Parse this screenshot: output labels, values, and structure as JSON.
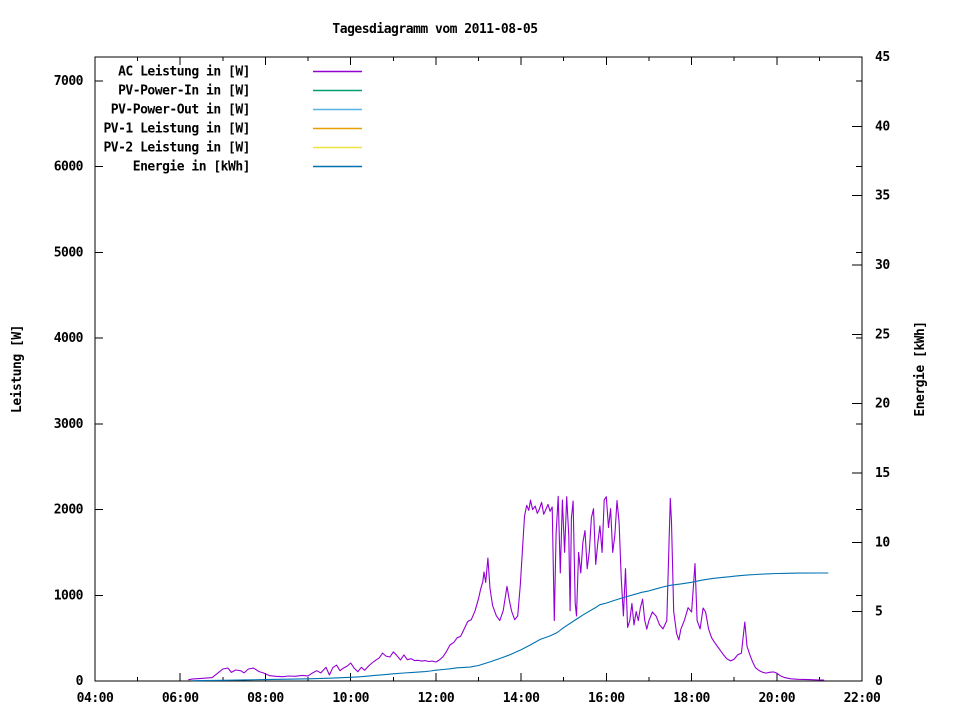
{
  "chart_data": {
    "type": "line",
    "title": "Tagesdiagramm vom 2011-08-05",
    "grid": false,
    "legend_position": "top-left-inside",
    "x": {
      "range_hours": [
        4,
        22
      ],
      "major_ticks": [
        {
          "hour": 4,
          "label": "04:00"
        },
        {
          "hour": 6,
          "label": "06:00"
        },
        {
          "hour": 8,
          "label": "08:00"
        },
        {
          "hour": 10,
          "label": "10:00"
        },
        {
          "hour": 12,
          "label": "12:00"
        },
        {
          "hour": 14,
          "label": "14:00"
        },
        {
          "hour": 16,
          "label": "16:00"
        },
        {
          "hour": 18,
          "label": "18:00"
        },
        {
          "hour": 20,
          "label": "20:00"
        },
        {
          "hour": 22,
          "label": "22:00"
        }
      ],
      "minor_tick_hours": [
        5,
        7,
        9,
        11,
        13,
        15,
        17,
        19,
        21
      ]
    },
    "y_left": {
      "label": "Leistung [W]",
      "range": [
        0,
        7280
      ],
      "tick_values": [
        0,
        1000,
        2000,
        3000,
        4000,
        5000,
        6000,
        7000
      ],
      "tick_labels": [
        "0",
        "1000",
        "2000",
        "3000",
        "4000",
        "5000",
        "6000",
        "7000"
      ]
    },
    "y_right": {
      "label": "Energie [kWh]",
      "range": [
        0,
        45
      ],
      "tick_values": [
        0,
        5,
        10,
        15,
        20,
        25,
        30,
        35,
        40,
        45
      ],
      "tick_labels": [
        "0",
        "5",
        "10",
        "15",
        "20",
        "25",
        "30",
        "35",
        "40",
        "45"
      ]
    },
    "series": [
      {
        "name": "AC Leistung in [W]",
        "color": "#9400d3",
        "axis": "left",
        "points": [
          [
            6.2,
            15
          ],
          [
            6.3,
            25
          ],
          [
            6.5,
            30
          ],
          [
            6.75,
            40
          ],
          [
            6.9,
            100
          ],
          [
            7.0,
            140
          ],
          [
            7.12,
            152
          ],
          [
            7.2,
            100
          ],
          [
            7.3,
            128
          ],
          [
            7.42,
            120
          ],
          [
            7.5,
            95
          ],
          [
            7.6,
            140
          ],
          [
            7.72,
            150
          ],
          [
            7.85,
            110
          ],
          [
            7.95,
            95
          ],
          [
            8.1,
            62
          ],
          [
            8.25,
            55
          ],
          [
            8.4,
            50
          ],
          [
            8.55,
            58
          ],
          [
            8.7,
            55
          ],
          [
            8.85,
            65
          ],
          [
            9.0,
            60
          ],
          [
            9.1,
            92
          ],
          [
            9.2,
            120
          ],
          [
            9.3,
            95
          ],
          [
            9.42,
            160
          ],
          [
            9.5,
            70
          ],
          [
            9.58,
            155
          ],
          [
            9.67,
            185
          ],
          [
            9.75,
            120
          ],
          [
            9.83,
            150
          ],
          [
            9.92,
            175
          ],
          [
            10.0,
            210
          ],
          [
            10.08,
            150
          ],
          [
            10.17,
            108
          ],
          [
            10.25,
            160
          ],
          [
            10.33,
            125
          ],
          [
            10.42,
            175
          ],
          [
            10.5,
            210
          ],
          [
            10.58,
            240
          ],
          [
            10.67,
            270
          ],
          [
            10.75,
            325
          ],
          [
            10.83,
            290
          ],
          [
            10.92,
            280
          ],
          [
            11.0,
            340
          ],
          [
            11.08,
            300
          ],
          [
            11.17,
            245
          ],
          [
            11.25,
            305
          ],
          [
            11.33,
            248
          ],
          [
            11.42,
            260
          ],
          [
            11.5,
            238
          ],
          [
            11.58,
            242
          ],
          [
            11.67,
            232
          ],
          [
            11.75,
            238
          ],
          [
            11.83,
            228
          ],
          [
            11.92,
            232
          ],
          [
            12.0,
            222
          ],
          [
            12.08,
            245
          ],
          [
            12.17,
            285
          ],
          [
            12.25,
            345
          ],
          [
            12.33,
            420
          ],
          [
            12.42,
            450
          ],
          [
            12.5,
            505
          ],
          [
            12.58,
            520
          ],
          [
            12.67,
            612
          ],
          [
            12.75,
            695
          ],
          [
            12.83,
            715
          ],
          [
            12.92,
            820
          ],
          [
            13.0,
            960
          ],
          [
            13.05,
            1070
          ],
          [
            13.1,
            1160
          ],
          [
            13.13,
            1272
          ],
          [
            13.17,
            1150
          ],
          [
            13.22,
            1435
          ],
          [
            13.27,
            1080
          ],
          [
            13.33,
            880
          ],
          [
            13.42,
            760
          ],
          [
            13.5,
            705
          ],
          [
            13.58,
            820
          ],
          [
            13.67,
            1105
          ],
          [
            13.72,
            950
          ],
          [
            13.78,
            810
          ],
          [
            13.85,
            715
          ],
          [
            13.92,
            760
          ],
          [
            13.98,
            1120
          ],
          [
            14.03,
            1520
          ],
          [
            14.08,
            1920
          ],
          [
            14.13,
            2050
          ],
          [
            14.18,
            1990
          ],
          [
            14.22,
            2110
          ],
          [
            14.27,
            2000
          ],
          [
            14.33,
            2040
          ],
          [
            14.38,
            1955
          ],
          [
            14.43,
            2005
          ],
          [
            14.48,
            2085
          ],
          [
            14.53,
            1945
          ],
          [
            14.58,
            2000
          ],
          [
            14.63,
            2060
          ],
          [
            14.68,
            1980
          ],
          [
            14.73,
            2030
          ],
          [
            14.78,
            705
          ],
          [
            14.82,
            1720
          ],
          [
            14.87,
            2155
          ],
          [
            14.92,
            1260
          ],
          [
            14.97,
            2110
          ],
          [
            15.02,
            1500
          ],
          [
            15.07,
            2150
          ],
          [
            15.12,
            1690
          ],
          [
            15.15,
            820
          ],
          [
            15.18,
            1900
          ],
          [
            15.22,
            2100
          ],
          [
            15.27,
            905
          ],
          [
            15.3,
            760
          ],
          [
            15.35,
            1500
          ],
          [
            15.4,
            1260
          ],
          [
            15.45,
            1620
          ],
          [
            15.5,
            1755
          ],
          [
            15.55,
            1310
          ],
          [
            15.6,
            1510
          ],
          [
            15.65,
            1905
          ],
          [
            15.7,
            2010
          ],
          [
            15.75,
            1360
          ],
          [
            15.8,
            1610
          ],
          [
            15.85,
            1810
          ],
          [
            15.9,
            1500
          ],
          [
            15.95,
            2110
          ],
          [
            16.0,
            2150
          ],
          [
            16.05,
            1790
          ],
          [
            16.1,
            2010
          ],
          [
            16.15,
            1500
          ],
          [
            16.2,
            1710
          ],
          [
            16.25,
            2105
          ],
          [
            16.3,
            1850
          ],
          [
            16.35,
            1210
          ],
          [
            16.4,
            760
          ],
          [
            16.45,
            1310
          ],
          [
            16.5,
            625
          ],
          [
            16.55,
            705
          ],
          [
            16.6,
            905
          ],
          [
            16.65,
            655
          ],
          [
            16.7,
            810
          ],
          [
            16.75,
            705
          ],
          [
            16.8,
            855
          ],
          [
            16.85,
            955
          ],
          [
            16.9,
            710
          ],
          [
            16.95,
            605
          ],
          [
            17.0,
            705
          ],
          [
            17.08,
            805
          ],
          [
            17.17,
            755
          ],
          [
            17.25,
            655
          ],
          [
            17.33,
            608
          ],
          [
            17.42,
            705
          ],
          [
            17.5,
            2130
          ],
          [
            17.53,
            1850
          ],
          [
            17.58,
            810
          ],
          [
            17.65,
            555
          ],
          [
            17.7,
            480
          ],
          [
            17.75,
            605
          ],
          [
            17.83,
            705
          ],
          [
            17.92,
            855
          ],
          [
            18.0,
            805
          ],
          [
            18.08,
            1370
          ],
          [
            18.13,
            705
          ],
          [
            18.2,
            608
          ],
          [
            18.27,
            850
          ],
          [
            18.33,
            805
          ],
          [
            18.4,
            605
          ],
          [
            18.47,
            505
          ],
          [
            18.53,
            458
          ],
          [
            18.6,
            408
          ],
          [
            18.67,
            360
          ],
          [
            18.75,
            305
          ],
          [
            18.83,
            258
          ],
          [
            18.92,
            235
          ],
          [
            19.0,
            255
          ],
          [
            19.08,
            305
          ],
          [
            19.17,
            325
          ],
          [
            19.25,
            688
          ],
          [
            19.3,
            405
          ],
          [
            19.37,
            305
          ],
          [
            19.43,
            225
          ],
          [
            19.5,
            155
          ],
          [
            19.58,
            122
          ],
          [
            19.67,
            102
          ],
          [
            19.75,
            92
          ],
          [
            19.83,
            102
          ],
          [
            19.92,
            106
          ],
          [
            20.0,
            92
          ],
          [
            20.08,
            62
          ],
          [
            20.17,
            42
          ],
          [
            20.33,
            26
          ],
          [
            20.5,
            20
          ],
          [
            20.75,
            16
          ],
          [
            21.0,
            12
          ],
          [
            21.1,
            10
          ]
        ]
      },
      {
        "name": "PV-Power-In in [W]",
        "color": "#009e73",
        "axis": "left",
        "points": []
      },
      {
        "name": "PV-Power-Out in [W]",
        "color": "#56b4e9",
        "axis": "left",
        "points": []
      },
      {
        "name": "PV-1 Leistung in [W]",
        "color": "#e69f00",
        "axis": "left",
        "points": []
      },
      {
        "name": "PV-2 Leistung in [W]",
        "color": "#f0e442",
        "axis": "left",
        "points": []
      },
      {
        "name": "Energie in [kWh]",
        "color": "#0072b2",
        "axis": "right",
        "points": [
          [
            6.3,
            0.02
          ],
          [
            7.0,
            0.05
          ],
          [
            7.5,
            0.08
          ],
          [
            8.0,
            0.1
          ],
          [
            8.5,
            0.13
          ],
          [
            9.0,
            0.16
          ],
          [
            9.5,
            0.2
          ],
          [
            10.0,
            0.27
          ],
          [
            10.25,
            0.31
          ],
          [
            10.5,
            0.38
          ],
          [
            10.75,
            0.45
          ],
          [
            11.0,
            0.52
          ],
          [
            11.25,
            0.58
          ],
          [
            11.5,
            0.63
          ],
          [
            11.75,
            0.68
          ],
          [
            11.87,
            0.72
          ],
          [
            12.0,
            0.78
          ],
          [
            12.17,
            0.83
          ],
          [
            12.33,
            0.88
          ],
          [
            12.5,
            0.95
          ],
          [
            12.8,
            1.0
          ],
          [
            13.0,
            1.12
          ],
          [
            13.27,
            1.38
          ],
          [
            13.5,
            1.62
          ],
          [
            13.73,
            1.88
          ],
          [
            14.0,
            2.25
          ],
          [
            14.22,
            2.6
          ],
          [
            14.45,
            3.0
          ],
          [
            14.68,
            3.25
          ],
          [
            14.85,
            3.5
          ],
          [
            15.0,
            3.85
          ],
          [
            15.27,
            4.4
          ],
          [
            15.5,
            4.85
          ],
          [
            15.75,
            5.3
          ],
          [
            15.85,
            5.5
          ],
          [
            16.0,
            5.62
          ],
          [
            16.17,
            5.8
          ],
          [
            16.33,
            5.95
          ],
          [
            16.5,
            6.1
          ],
          [
            16.67,
            6.25
          ],
          [
            16.83,
            6.4
          ],
          [
            17.0,
            6.5
          ],
          [
            17.17,
            6.65
          ],
          [
            17.33,
            6.78
          ],
          [
            17.5,
            6.9
          ],
          [
            17.75,
            7.0
          ],
          [
            18.0,
            7.12
          ],
          [
            18.25,
            7.28
          ],
          [
            18.5,
            7.4
          ],
          [
            18.75,
            7.48
          ],
          [
            18.9,
            7.52
          ],
          [
            19.0,
            7.56
          ],
          [
            19.25,
            7.63
          ],
          [
            19.5,
            7.68
          ],
          [
            19.75,
            7.72
          ],
          [
            20.0,
            7.75
          ],
          [
            20.25,
            7.77
          ],
          [
            20.5,
            7.78
          ],
          [
            21.0,
            7.79
          ],
          [
            21.2,
            7.79
          ]
        ]
      }
    ]
  }
}
